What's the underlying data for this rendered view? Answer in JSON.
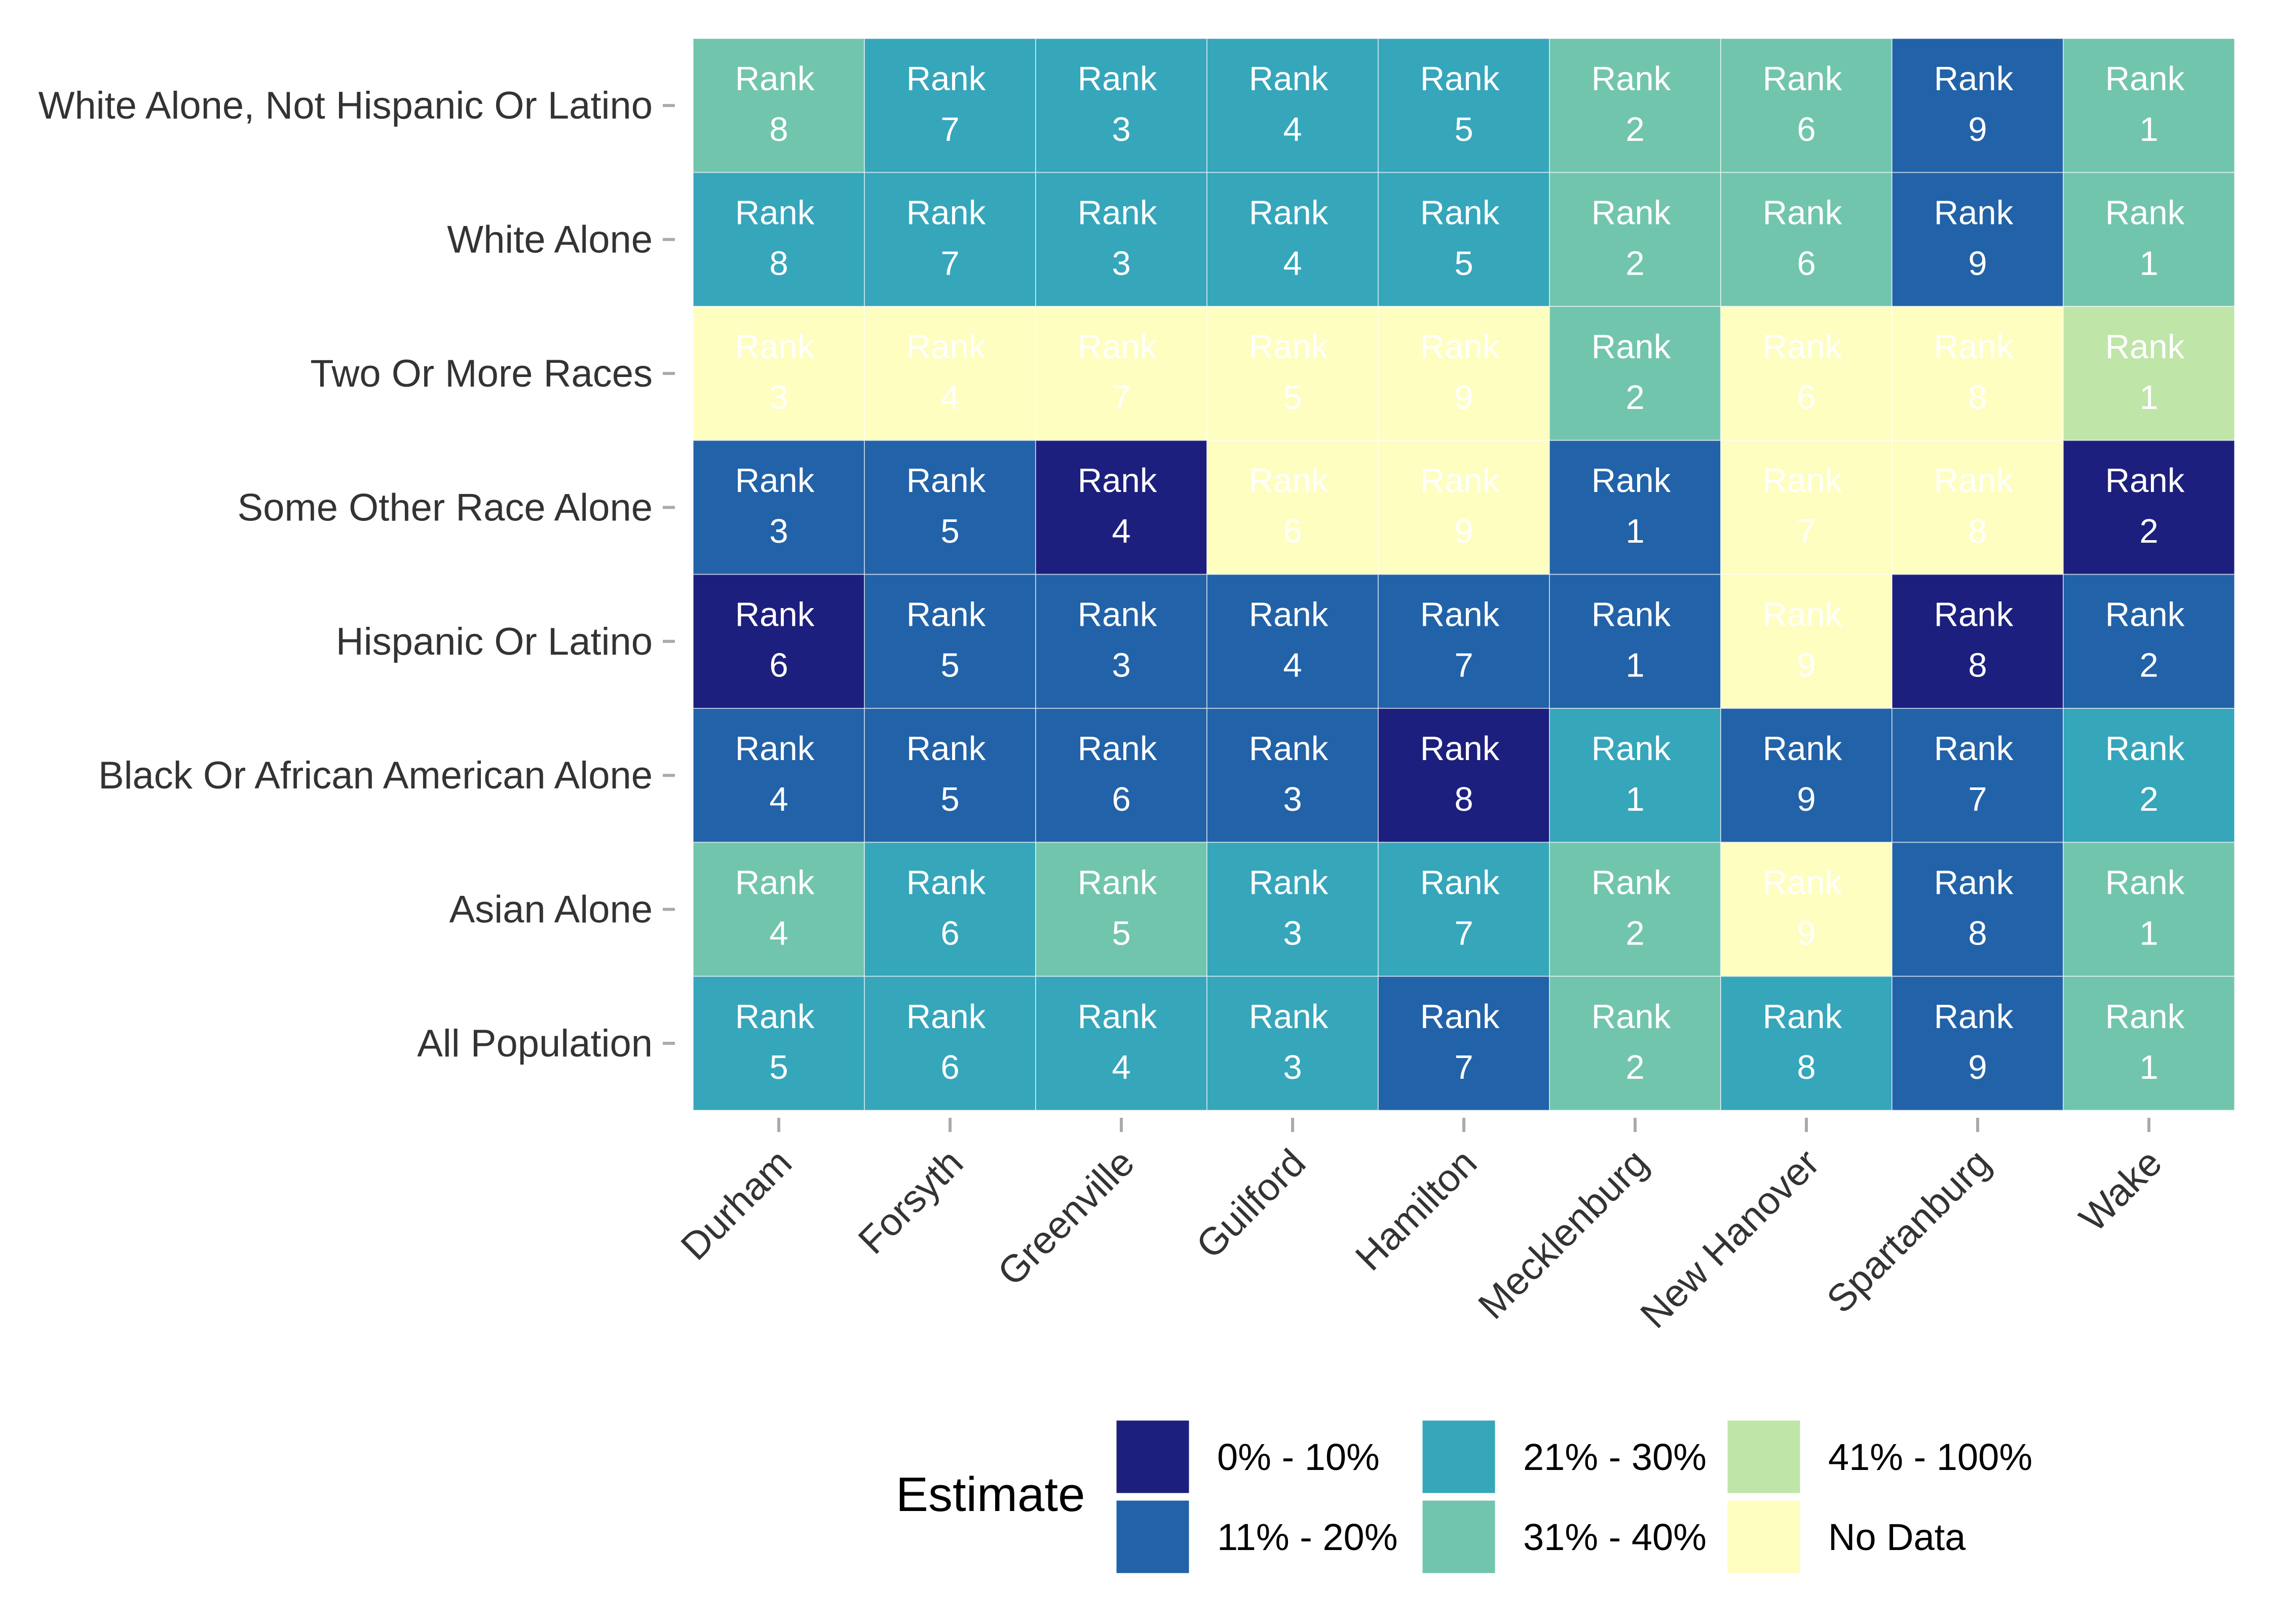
{
  "chart_data": {
    "type": "heatmap",
    "title": "",
    "xlabel": "",
    "ylabel": "",
    "x_categories": [
      "Durham",
      "Forsyth",
      "Greenville",
      "Guilford",
      "Hamilton",
      "Mecklenburg",
      "New Hanover",
      "Spartanburg",
      "Wake"
    ],
    "y_categories": [
      "White Alone, Not Hispanic Or Latino",
      "White Alone",
      "Two Or More Races",
      "Some Other Race Alone",
      "Hispanic Or Latino",
      "Black Or African American Alone",
      "Asian Alone",
      "All Population"
    ],
    "cell_label_prefix": "Rank",
    "ranks": [
      [
        8,
        7,
        3,
        4,
        5,
        2,
        6,
        9,
        1
      ],
      [
        8,
        7,
        3,
        4,
        5,
        2,
        6,
        9,
        1
      ],
      [
        3,
        4,
        7,
        5,
        9,
        2,
        6,
        8,
        1
      ],
      [
        3,
        5,
        4,
        6,
        9,
        1,
        7,
        8,
        2
      ],
      [
        6,
        5,
        3,
        4,
        7,
        1,
        9,
        8,
        2
      ],
      [
        4,
        5,
        6,
        3,
        8,
        1,
        9,
        7,
        2
      ],
      [
        4,
        6,
        5,
        3,
        7,
        2,
        9,
        8,
        1
      ],
      [
        5,
        6,
        4,
        3,
        7,
        2,
        8,
        9,
        1
      ]
    ],
    "estimate_bins": [
      [
        "31% - 40%",
        "21% - 30%",
        "21% - 30%",
        "21% - 30%",
        "21% - 30%",
        "31% - 40%",
        "31% - 40%",
        "11% - 20%",
        "31% - 40%"
      ],
      [
        "21% - 30%",
        "21% - 30%",
        "21% - 30%",
        "21% - 30%",
        "21% - 30%",
        "31% - 40%",
        "31% - 40%",
        "11% - 20%",
        "31% - 40%"
      ],
      [
        "No Data",
        "No Data",
        "No Data",
        "No Data",
        "No Data",
        "31% - 40%",
        "No Data",
        "No Data",
        "41% - 100%"
      ],
      [
        "11% - 20%",
        "11% - 20%",
        "0% - 10%",
        "No Data",
        "No Data",
        "11% - 20%",
        "No Data",
        "No Data",
        "0% - 10%"
      ],
      [
        "0% - 10%",
        "11% - 20%",
        "11% - 20%",
        "11% - 20%",
        "11% - 20%",
        "11% - 20%",
        "No Data",
        "0% - 10%",
        "11% - 20%"
      ],
      [
        "11% - 20%",
        "11% - 20%",
        "11% - 20%",
        "11% - 20%",
        "0% - 10%",
        "21% - 30%",
        "11% - 20%",
        "11% - 20%",
        "21% - 30%"
      ],
      [
        "31% - 40%",
        "21% - 30%",
        "31% - 40%",
        "21% - 30%",
        "21% - 30%",
        "31% - 40%",
        "No Data",
        "11% - 20%",
        "31% - 40%"
      ],
      [
        "21% - 30%",
        "21% - 30%",
        "21% - 30%",
        "21% - 30%",
        "11% - 20%",
        "31% - 40%",
        "21% - 30%",
        "11% - 20%",
        "31% - 40%"
      ]
    ],
    "legend": {
      "title": "Estimate",
      "position": "bottom",
      "items": [
        {
          "label": "0% - 10%",
          "color": "#1d1f7e"
        },
        {
          "label": "11% - 20%",
          "color": "#2262a8"
        },
        {
          "label": "21% - 30%",
          "color": "#36a6bb"
        },
        {
          "label": "31% - 40%",
          "color": "#72c5ad"
        },
        {
          "label": "41% - 100%",
          "color": "#bfe5a8"
        },
        {
          "label": "No Data",
          "color": "#fefec1"
        }
      ]
    },
    "grid": false
  }
}
